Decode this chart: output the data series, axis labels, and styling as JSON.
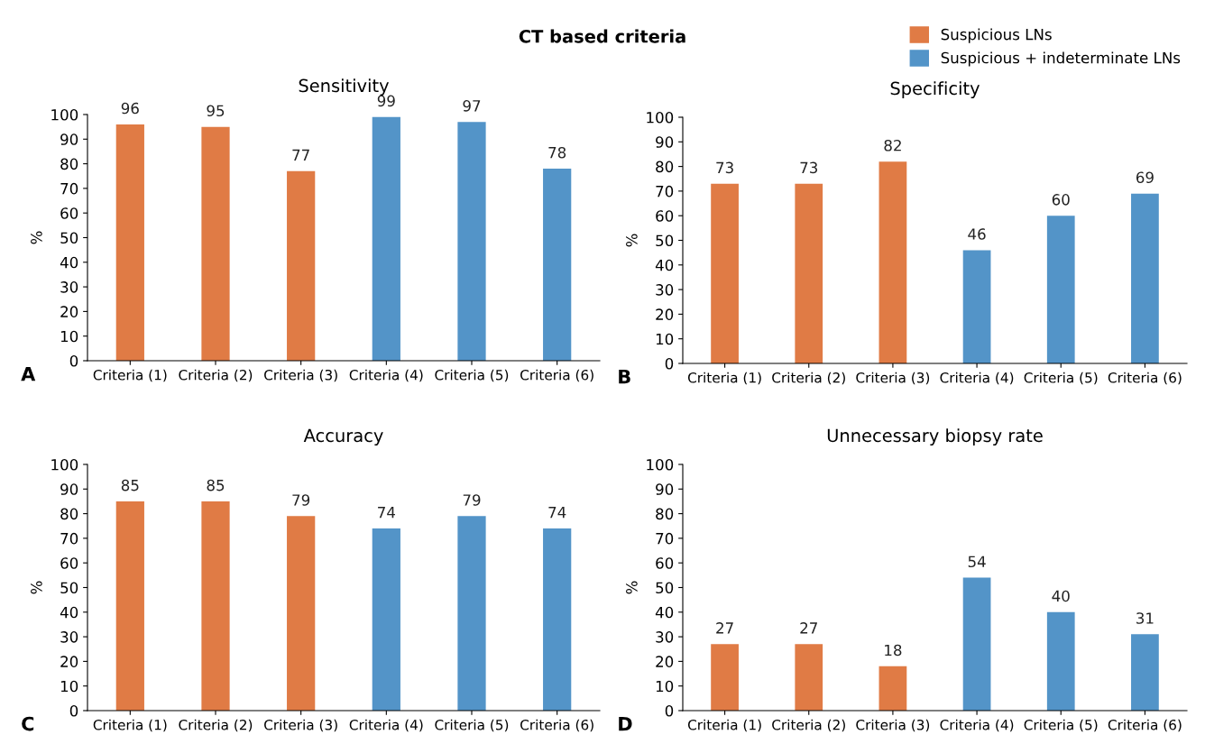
{
  "chart_data": [
    {
      "type": "bar",
      "title": "Sensitivity",
      "ylabel": "%",
      "annotations": [
        "A",
        "CT based criteria"
      ],
      "categories": [
        "Criteria (1)",
        "Criteria (2)",
        "Criteria (3)",
        "Criteria (4)",
        "Criteria (5)",
        "Criteria (6)"
      ],
      "series": [
        {
          "name": "Suspicious LNs",
          "color": "#e07b45",
          "values": [
            96,
            95,
            77,
            null,
            null,
            null
          ]
        },
        {
          "name": "Suspicious + indeterminate LNs",
          "color": "#5394c8",
          "values": [
            null,
            null,
            null,
            99,
            97,
            78
          ]
        }
      ],
      "ylim": [
        0,
        100
      ],
      "yticks": [
        0,
        10,
        20,
        30,
        40,
        50,
        60,
        70,
        80,
        90,
        100
      ],
      "data_labels": true,
      "grid": false,
      "legend": "top right"
    },
    {
      "type": "bar",
      "title": "Specificity",
      "ylabel": "%",
      "annotations": [
        "B"
      ],
      "categories": [
        "Criteria (1)",
        "Criteria (2)",
        "Criteria (3)",
        "Criteria (4)",
        "Criteria (5)",
        "Criteria (6)"
      ],
      "series": [
        {
          "color": "#e07b45",
          "values": [
            73,
            73,
            82,
            null,
            null,
            null
          ]
        },
        {
          "color": "#5394c8",
          "values": [
            null,
            null,
            null,
            46,
            60,
            69
          ]
        }
      ],
      "ylim": [
        0,
        100
      ],
      "yticks": [
        0,
        10,
        20,
        30,
        40,
        50,
        60,
        70,
        80,
        90,
        100
      ],
      "data_labels": true,
      "grid": false
    },
    {
      "type": "bar",
      "title": "Accuracy",
      "ylabel": "%",
      "annotations": [
        "C"
      ],
      "categories": [
        "Criteria (1)",
        "Criteria (2)",
        "Criteria (3)",
        "Criteria (4)",
        "Criteria (5)",
        "Criteria (6)"
      ],
      "series": [
        {
          "color": "#e07b45",
          "values": [
            85,
            85,
            79,
            null,
            null,
            null
          ]
        },
        {
          "color": "#5394c8",
          "values": [
            null,
            null,
            null,
            74,
            79,
            74
          ]
        }
      ],
      "ylim": [
        0,
        100
      ],
      "yticks": [
        0,
        10,
        20,
        30,
        40,
        50,
        60,
        70,
        80,
        90,
        100
      ],
      "data_labels": true,
      "grid": false
    },
    {
      "type": "bar",
      "title": "Unnecessary biopsy rate",
      "ylabel": "%",
      "annotations": [
        "D"
      ],
      "categories": [
        "Criteria (1)",
        "Criteria (2)",
        "Criteria (3)",
        "Criteria (4)",
        "Criteria (5)",
        "Criteria (6)"
      ],
      "series": [
        {
          "color": "#e07b45",
          "values": [
            27,
            27,
            18,
            null,
            null,
            null
          ]
        },
        {
          "color": "#5394c8",
          "values": [
            null,
            null,
            null,
            54,
            40,
            31
          ]
        }
      ],
      "ylim": [
        0,
        100
      ],
      "yticks": [
        0,
        10,
        20,
        30,
        40,
        50,
        60,
        70,
        80,
        90,
        100
      ],
      "data_labels": true,
      "grid": false
    }
  ]
}
